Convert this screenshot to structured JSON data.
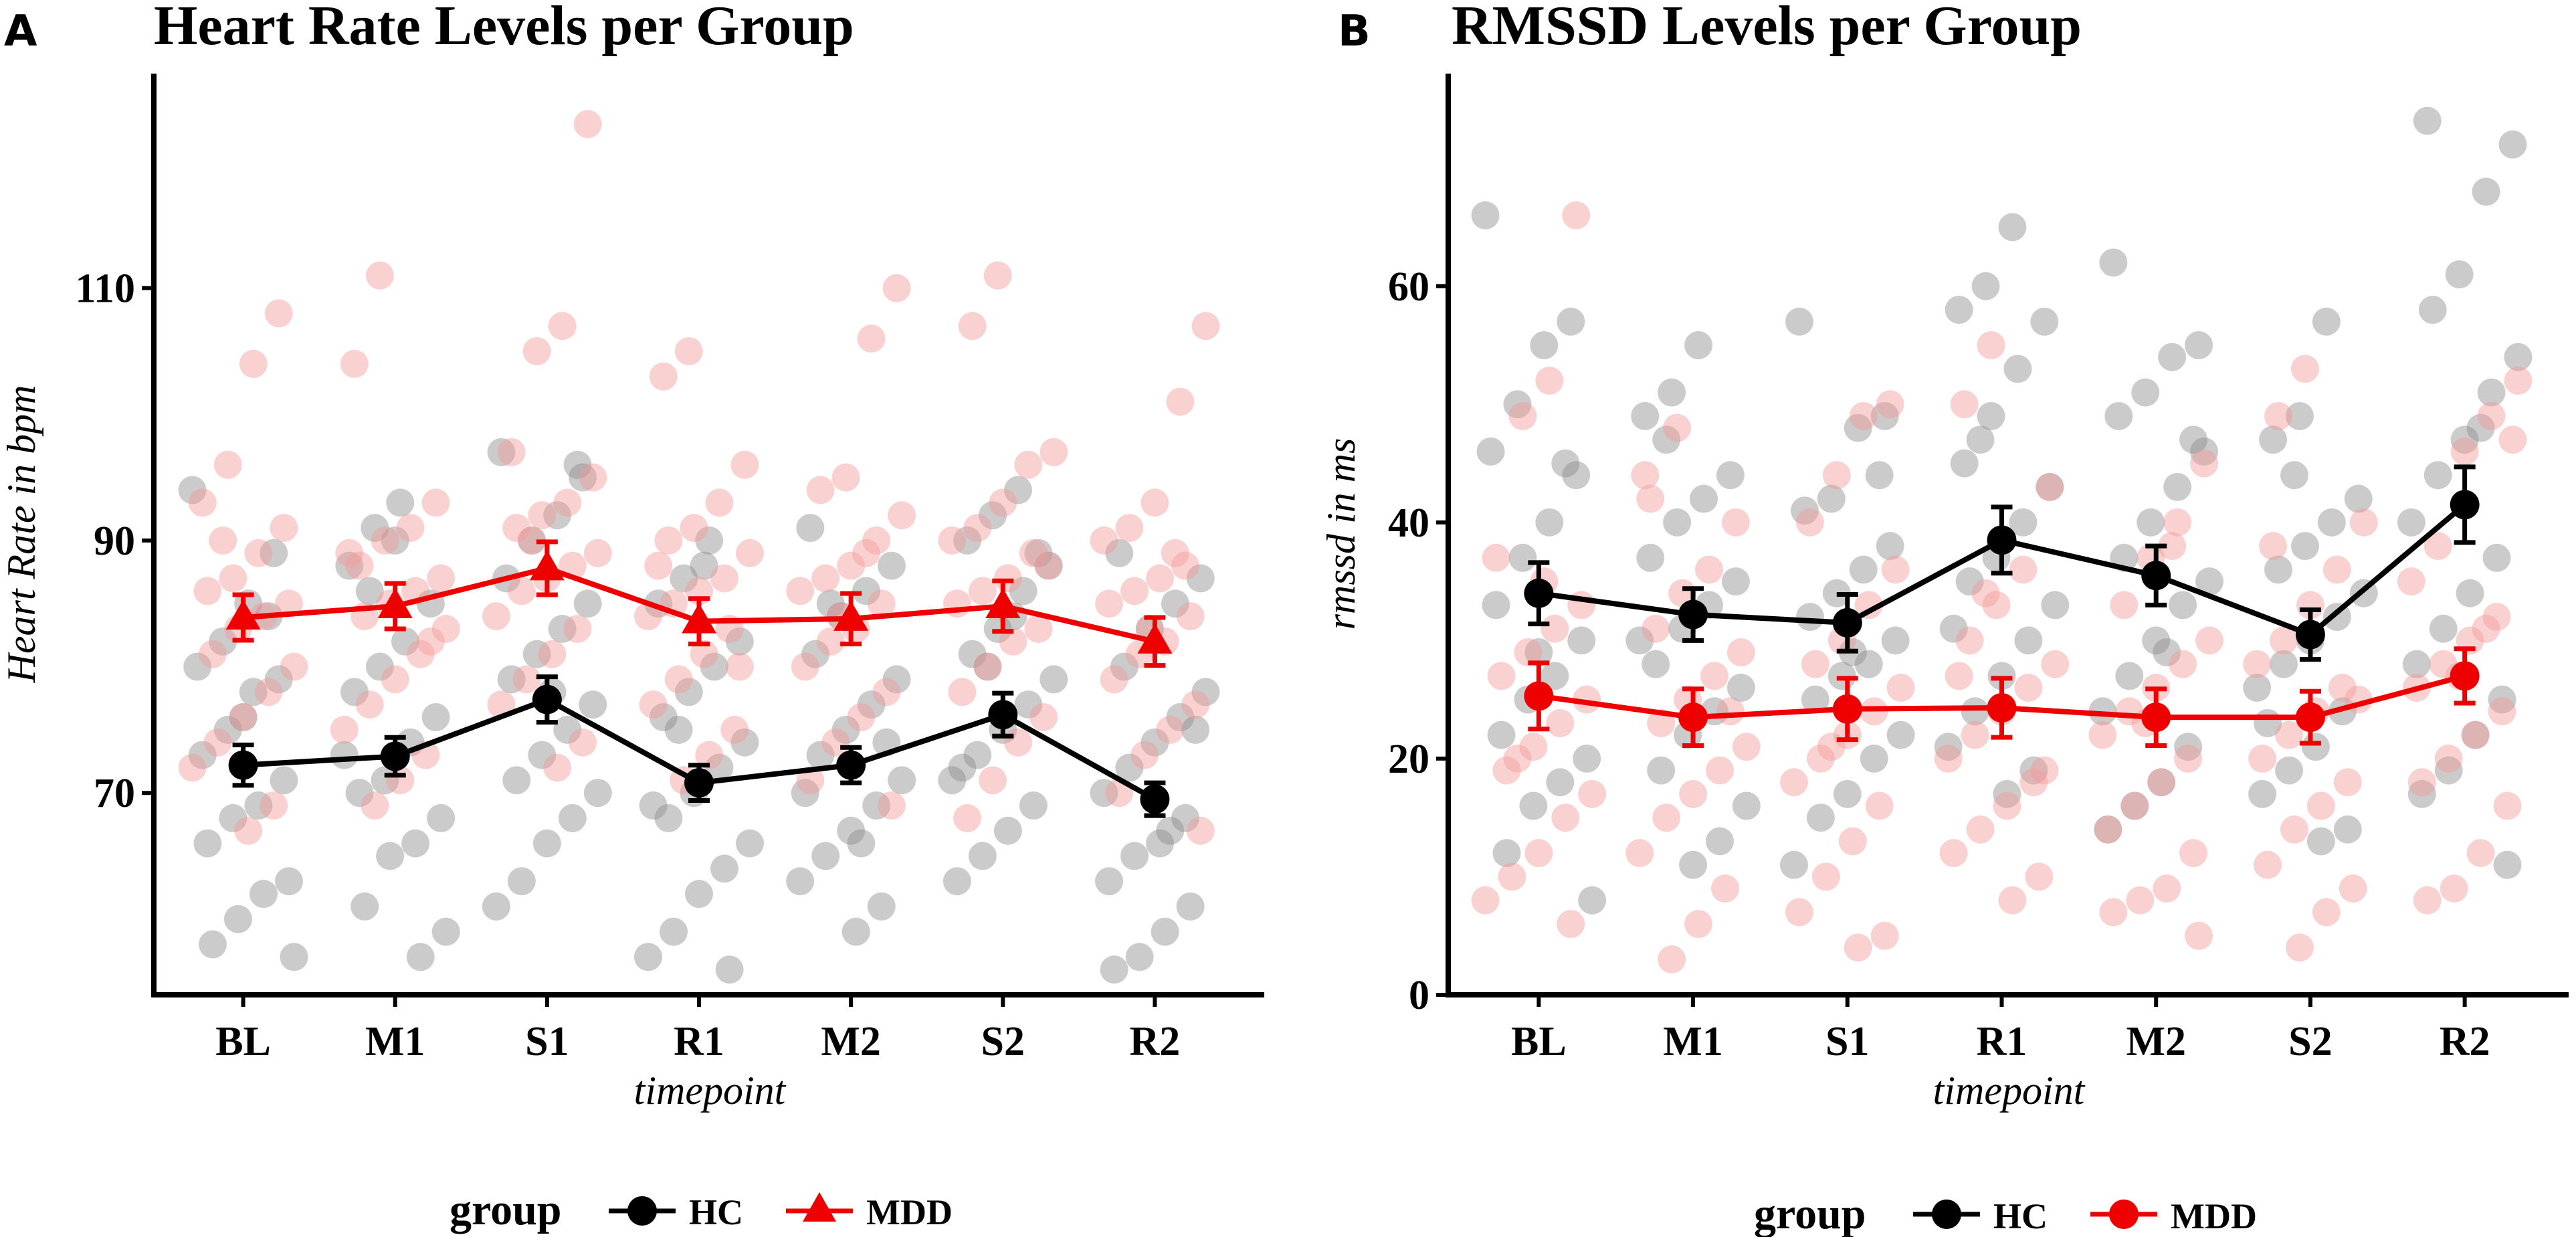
{
  "legend": {
    "title": "group",
    "hc": "HC",
    "mdd": "MDD"
  },
  "colors": {
    "hc": "#000000",
    "mdd": "#ee0000",
    "hc_points": "#8c8c8c",
    "mdd_points": "#f59a9a"
  },
  "chart_data": [
    {
      "panel_letter": "A",
      "type": "line",
      "title": "Heart Rate Levels per Group",
      "xlabel": "timepoint",
      "ylabel": "Heart Rate in bpm",
      "categories": [
        "BL",
        "M1",
        "S1",
        "R1",
        "M2",
        "S2",
        "R2"
      ],
      "ylim": [
        54,
        127
      ],
      "yticks": [
        70,
        90,
        110
      ],
      "series": [
        {
          "name": "HC",
          "marker": "circle",
          "values": [
            72.2,
            72.9,
            77.4,
            70.8,
            72.2,
            76.2,
            69.5
          ],
          "error": [
            1.6,
            1.5,
            1.8,
            1.4,
            1.4,
            1.7,
            1.3
          ],
          "points": [
            [
              94,
              89,
              85,
              82,
              80,
              79,
              78,
              75,
              73,
              71,
              69,
              68,
              66,
              63,
              62,
              60,
              58,
              57,
              84,
              76
            ],
            [
              93,
              91,
              88,
              85,
              82,
              80,
              78,
              76,
              74,
              71,
              70,
              68,
              66,
              65,
              61,
              59,
              57,
              90,
              86,
              73
            ],
            [
              97,
              95,
              92,
              90,
              87,
              85,
              83,
              81,
              79,
              77,
              75,
              73,
              71,
              70,
              68,
              66,
              63,
              61,
              96,
              78
            ],
            [
              90,
              87,
              85,
              82,
              80,
              78,
              76,
              74,
              72,
              70,
              68,
              66,
              64,
              62,
              59,
              57,
              56,
              88,
              75,
              69
            ],
            [
              91,
              88,
              86,
              84,
              81,
              79,
              77,
              75,
              73,
              71,
              69,
              67,
              65,
              63,
              61,
              59,
              85,
              70,
              74,
              66
            ],
            [
              94,
              92,
              90,
              88,
              86,
              83,
              81,
              79,
              77,
              75,
              73,
              71,
              69,
              67,
              65,
              63,
              89,
              84,
              80,
              72
            ],
            [
              89,
              87,
              85,
              83,
              80,
              78,
              76,
              74,
              72,
              70,
              68,
              66,
              65,
              63,
              61,
              59,
              57,
              56,
              75,
              67
            ]
          ]
        },
        {
          "name": "MDD",
          "marker": "triangle",
          "values": [
            83.9,
            84.8,
            87.8,
            83.6,
            83.8,
            84.8,
            82.0
          ],
          "error": [
            1.8,
            1.8,
            2.1,
            1.8,
            2.0,
            2.0,
            1.9
          ],
          "points": [
            [
              108,
              104,
              96,
              93,
              91,
              89,
              87,
              86,
              85,
              84,
              83,
              81,
              80,
              78,
              76,
              74,
              72,
              69,
              67,
              90
            ],
            [
              111,
              104,
              93,
              91,
              90,
              88,
              87,
              86,
              85,
              84,
              83,
              81,
              79,
              77,
              75,
              73,
              71,
              69,
              89,
              82
            ],
            [
              123,
              107,
              105,
              97,
              95,
              93,
              92,
              91,
              89,
              88,
              87,
              86,
              84,
              83,
              81,
              79,
              77,
              74,
              72,
              90
            ],
            [
              105,
              103,
              96,
              93,
              91,
              90,
              89,
              87,
              86,
              85,
              84,
              83,
              81,
              79,
              77,
              75,
              73,
              71,
              88,
              80
            ],
            [
              110,
              106,
              95,
              94,
              92,
              90,
              88,
              87,
              86,
              85,
              83,
              82,
              80,
              78,
              76,
              74,
              71,
              69,
              89,
              84
            ],
            [
              111,
              107,
              97,
              96,
              93,
              91,
              90,
              89,
              87,
              86,
              85,
              83,
              82,
              80,
              78,
              76,
              74,
              71,
              68,
              88
            ],
            [
              107,
              101,
              93,
              91,
              90,
              88,
              87,
              86,
              85,
              84,
              82,
              81,
              79,
              77,
              75,
              73,
              70,
              67,
              89,
              83
            ]
          ]
        }
      ]
    },
    {
      "panel_letter": "B",
      "type": "line",
      "title": "RMSSD Levels per Group",
      "xlabel": "timepoint",
      "ylabel": "rmssd in ms",
      "categories": [
        "BL",
        "M1",
        "S1",
        "R1",
        "M2",
        "S2",
        "R2"
      ],
      "ylim": [
        0,
        78
      ],
      "yticks": [
        0,
        20,
        40,
        60
      ],
      "series": [
        {
          "name": "HC",
          "marker": "circle",
          "values": [
            34.0,
            32.2,
            31.5,
            38.5,
            35.5,
            30.5,
            41.5
          ],
          "error": [
            2.6,
            2.2,
            2.4,
            2.8,
            2.5,
            2.1,
            3.2
          ],
          "points": [
            [
              66,
              57,
              55,
              50,
              46,
              44,
              40,
              37,
              33,
              30,
              27,
              25,
              22,
              20,
              18,
              16,
              12,
              8,
              45,
              29
            ],
            [
              55,
              51,
              49,
              44,
              42,
              40,
              37,
              35,
              33,
              31,
              28,
              26,
              24,
              22,
              19,
              16,
              13,
              11,
              47,
              30
            ],
            [
              57,
              49,
              48,
              42,
              41,
              38,
              36,
              34,
              32,
              30,
              28,
              27,
              25,
              22,
              20,
              17,
              15,
              11,
              44,
              29
            ],
            [
              65,
              60,
              58,
              57,
              53,
              49,
              45,
              43,
              40,
              37,
              35,
              33,
              30,
              27,
              24,
              21,
              19,
              17,
              47,
              31
            ],
            [
              62,
              55,
              54,
              51,
              49,
              46,
              43,
              40,
              37,
              35,
              33,
              30,
              27,
              24,
              21,
              18,
              16,
              14,
              47,
              29
            ],
            [
              57,
              49,
              47,
              42,
              40,
              38,
              36,
              34,
              32,
              30,
              28,
              26,
              24,
              21,
              19,
              17,
              14,
              13,
              44,
              23
            ],
            [
              74,
              72,
              68,
              61,
              58,
              54,
              51,
              47,
              44,
              40,
              37,
              34,
              31,
              28,
              25,
              22,
              19,
              17,
              11,
              48
            ]
          ]
        },
        {
          "name": "MDD",
          "marker": "circle",
          "values": [
            25.3,
            23.5,
            24.2,
            24.3,
            23.5,
            23.5,
            27.0
          ],
          "error": [
            2.8,
            2.4,
            2.6,
            2.5,
            2.4,
            2.2,
            2.3
          ],
          "points": [
            [
              66,
              52,
              49,
              37,
              33,
              31,
              29,
              27,
              25,
              23,
              21,
              19,
              17,
              15,
              12,
              10,
              8,
              6,
              35,
              20
            ],
            [
              48,
              42,
              40,
              36,
              34,
              31,
              29,
              27,
              25,
              23,
              21,
              19,
              17,
              15,
              12,
              9,
              6,
              3,
              44,
              24
            ],
            [
              50,
              49,
              44,
              40,
              36,
              33,
              30,
              28,
              26,
              24,
              22,
              20,
              18,
              16,
              13,
              10,
              7,
              5,
              4,
              21
            ],
            [
              55,
              50,
              43,
              36,
              33,
              30,
              28,
              26,
              24,
              22,
              20,
              18,
              16,
              14,
              12,
              10,
              8,
              34,
              27,
              19
            ],
            [
              45,
              40,
              37,
              33,
              30,
              28,
              26,
              24,
              22,
              20,
              18,
              16,
              14,
              12,
              9,
              8,
              7,
              5,
              38,
              23
            ],
            [
              53,
              49,
              40,
              36,
              33,
              30,
              28,
              26,
              24,
              22,
              20,
              18,
              16,
              14,
              11,
              9,
              7,
              4,
              38,
              25
            ],
            [
              52,
              49,
              46,
              38,
              35,
              32,
              30,
              28,
              26,
              24,
              22,
              20,
              18,
              16,
              12,
              9,
              8,
              47,
              31,
              27
            ]
          ]
        }
      ]
    }
  ]
}
